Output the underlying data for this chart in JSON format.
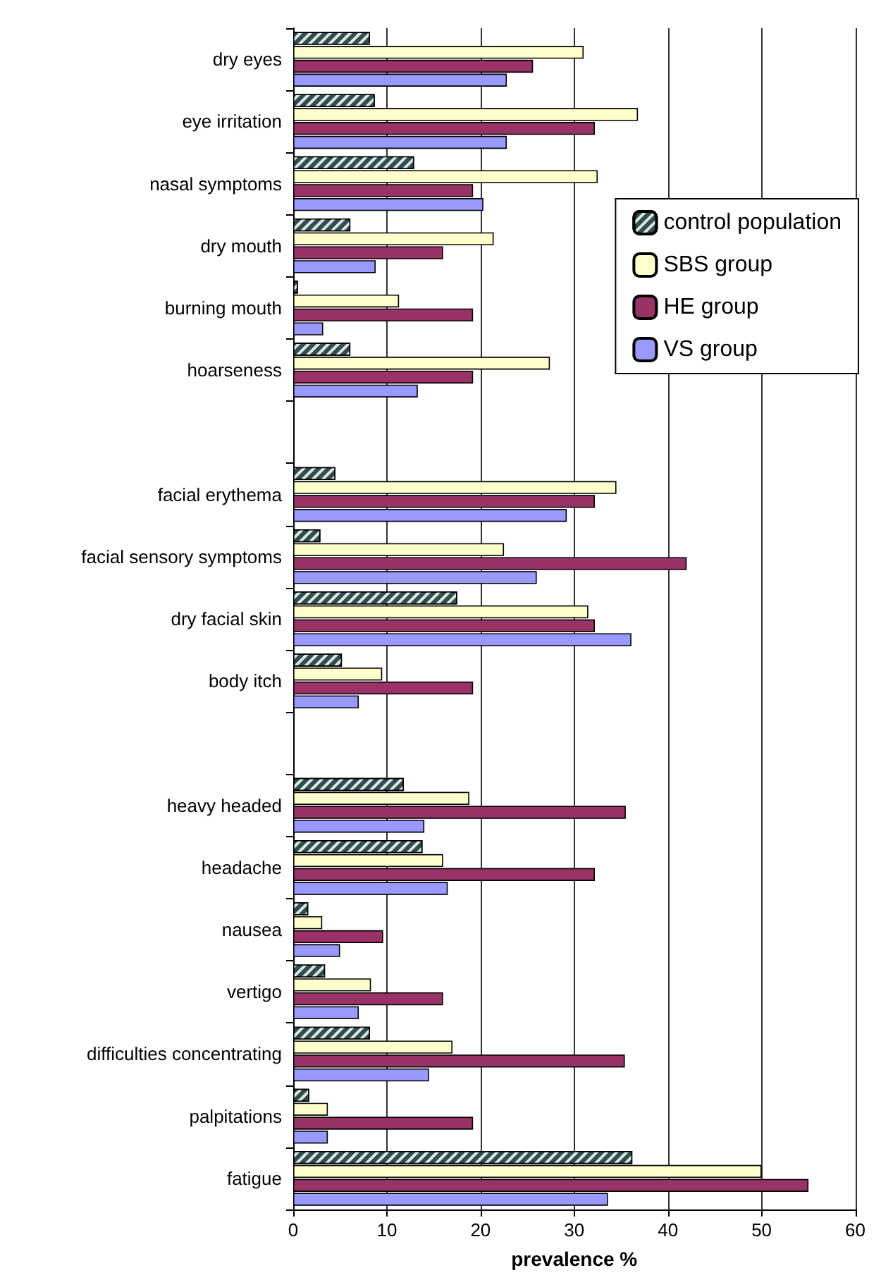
{
  "chart_data": {
    "type": "bar",
    "orientation": "horizontal",
    "xlabel": "prevalence %",
    "categories": [
      "dry eyes",
      "eye irritation",
      "nasal symptoms",
      "dry mouth",
      "burning mouth",
      "hoarseness",
      null,
      "facial erythema",
      "facial sensory symptoms",
      "dry facial skin",
      "body itch",
      null,
      "heavy headed",
      "headache",
      "nausea",
      "vertigo",
      "difficulties concentrating",
      "palpitations",
      "fatigue"
    ],
    "series": [
      {
        "name": "control population",
        "color": "#2f4f4f",
        "values": [
          8.2,
          8.7,
          12.9,
          6.1,
          0.5,
          6.1,
          null,
          4.5,
          2.9,
          17.5,
          5.2,
          null,
          11.8,
          13.8,
          1.6,
          3.4,
          8.2,
          1.7,
          36.2
        ]
      },
      {
        "name": "SBS group",
        "color": "#ffffcc",
        "values": [
          31,
          36.8,
          32.5,
          21.4,
          11.3,
          27.4,
          null,
          34.5,
          22.5,
          31.5,
          9.5,
          null,
          18.8,
          16,
          3.1,
          8.3,
          17,
          3.7,
          50
        ]
      },
      {
        "name": "HE group",
        "color": "#993366",
        "values": [
          25.6,
          32.2,
          19.2,
          16,
          19.2,
          19.2,
          null,
          32.2,
          42,
          32.2,
          19.2,
          null,
          35.5,
          32.2,
          9.6,
          16,
          35.4,
          19.2,
          55
        ]
      },
      {
        "name": "VS group",
        "color": "#9999ff",
        "values": [
          22.8,
          22.8,
          20.3,
          8.8,
          3.2,
          13.3,
          null,
          29.2,
          26,
          36.1,
          7,
          null,
          14,
          16.5,
          5,
          7,
          14.5,
          3.7,
          33.6
        ]
      }
    ],
    "xlim": [
      0,
      60
    ],
    "xticks": [
      0,
      10,
      20,
      30,
      40,
      50,
      60
    ],
    "grid": "x",
    "legend": "right"
  }
}
